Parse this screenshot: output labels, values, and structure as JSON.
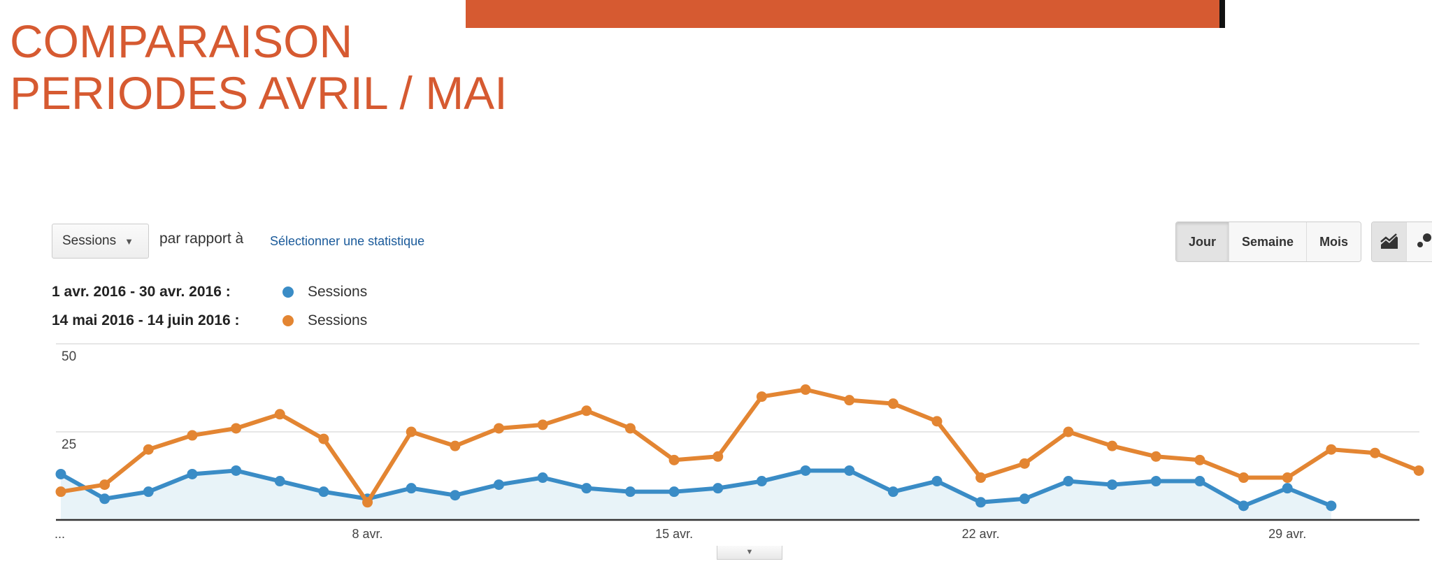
{
  "slide": {
    "title_line1": "COMPARAISON",
    "title_line2": "PERIODES AVRIL / MAI"
  },
  "controls": {
    "metric": "Sessions",
    "compare_text": "par rapport à",
    "select_metric": "Sélectionner une statistique",
    "granularity": [
      "Jour",
      "Semaine",
      "Mois"
    ],
    "selected_granularity": "Jour",
    "chart_types": [
      "line-chart-icon",
      "motion-chart-icon"
    ]
  },
  "legend": [
    {
      "range": "1 avr. 2016 - 30 avr. 2016 :",
      "label": "Sessions",
      "color": "#3a8cc6"
    },
    {
      "range": "14 mai 2016 - 14 juin 2016 :",
      "label": "Sessions",
      "color": "#e38532"
    }
  ],
  "chart_data": {
    "type": "line",
    "ylim": [
      0,
      50
    ],
    "yticks": [
      "50",
      "25"
    ],
    "xticks": [
      {
        "index": 0,
        "label": "..."
      },
      {
        "index": 7,
        "label": "8 avr."
      },
      {
        "index": 14,
        "label": "15 avr."
      },
      {
        "index": 21,
        "label": "22 avr."
      },
      {
        "index": 28,
        "label": "29 avr."
      }
    ],
    "series": [
      {
        "name": "Sessions (1 avr. 2016 - 30 avr. 2016)",
        "color": "#3a8cc6",
        "area": true,
        "values": [
          13,
          6,
          8,
          13,
          14,
          11,
          8,
          6,
          9,
          7,
          10,
          12,
          9,
          8,
          8,
          9,
          11,
          14,
          14,
          8,
          11,
          5,
          6,
          11,
          10,
          11,
          11,
          4,
          9,
          4
        ]
      },
      {
        "name": "Sessions (14 mai 2016 - 14 juin 2016)",
        "color": "#e38532",
        "area": false,
        "values": [
          8,
          10,
          20,
          24,
          26,
          30,
          23,
          5,
          25,
          21,
          26,
          27,
          31,
          26,
          17,
          18,
          35,
          37,
          34,
          33,
          28,
          12,
          16,
          25,
          21,
          18,
          17,
          12,
          12,
          20,
          19,
          14
        ]
      }
    ]
  }
}
